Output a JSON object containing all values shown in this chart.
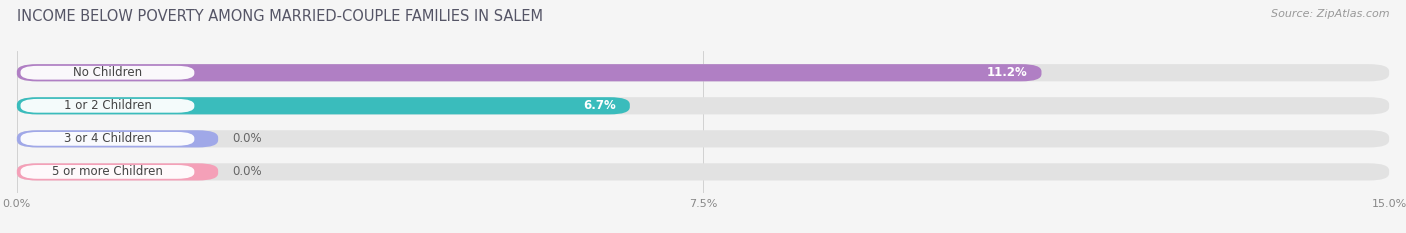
{
  "title": "INCOME BELOW POVERTY AMONG MARRIED-COUPLE FAMILIES IN SALEM",
  "source": "Source: ZipAtlas.com",
  "categories": [
    "No Children",
    "1 or 2 Children",
    "3 or 4 Children",
    "5 or more Children"
  ],
  "values": [
    11.2,
    6.7,
    0.0,
    0.0
  ],
  "bar_colors": [
    "#b07fc4",
    "#3abcbc",
    "#a0a8e8",
    "#f4a0b8"
  ],
  "value_labels": [
    "11.2%",
    "6.7%",
    "0.0%",
    "0.0%"
  ],
  "xlim": [
    0,
    15.0
  ],
  "xticks": [
    0.0,
    7.5,
    15.0
  ],
  "xtick_labels": [
    "0.0%",
    "7.5%",
    "15.0%"
  ],
  "bg_color": "#f5f5f5",
  "track_color": "#e2e2e2",
  "bar_height": 0.52,
  "title_fontsize": 10.5,
  "label_fontsize": 8.5,
  "value_fontsize": 8.5,
  "source_fontsize": 8
}
